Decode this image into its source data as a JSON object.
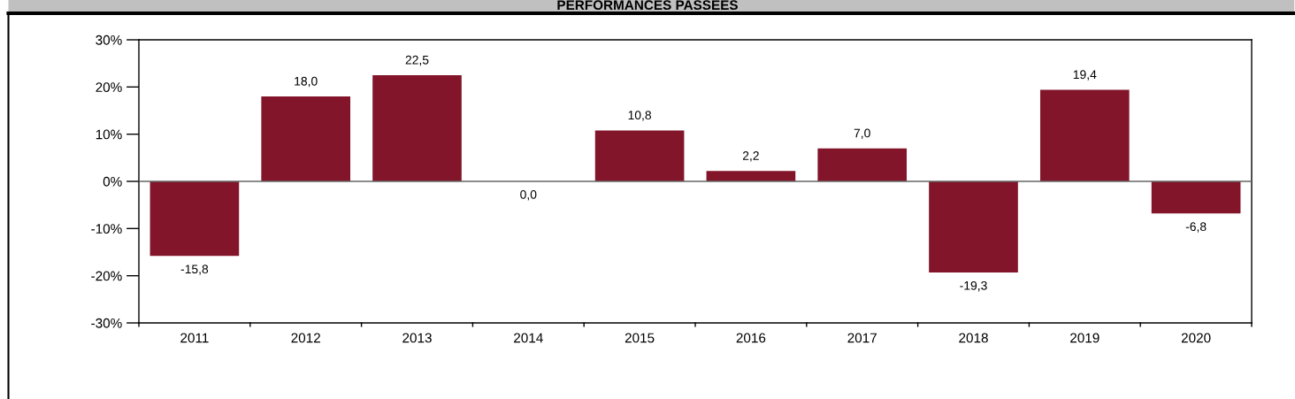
{
  "chart_data": {
    "type": "bar",
    "title": "PERFORMANCES PASSEES",
    "categories": [
      "2011",
      "2012",
      "2013",
      "2014",
      "2015",
      "2016",
      "2017",
      "2018",
      "2019",
      "2020"
    ],
    "values": [
      -15.8,
      18.0,
      22.5,
      0.0,
      10.8,
      2.2,
      7.0,
      -19.3,
      19.4,
      -6.8
    ],
    "value_labels": [
      "-15,8",
      "18,0",
      "22,5",
      "0,0",
      "10,8",
      "2,2",
      "7,0",
      "-19,3",
      "19,4",
      "-6,8"
    ],
    "color": "#82152a",
    "ylim": [
      -30,
      30
    ],
    "yticks": [
      {
        "value": -30,
        "label": "-30%"
      },
      {
        "value": -20,
        "label": "-20%"
      },
      {
        "value": -10,
        "label": "-10%"
      },
      {
        "value": 0,
        "label": "0%"
      },
      {
        "value": 10,
        "label": "10%"
      },
      {
        "value": 20,
        "label": "20%"
      },
      {
        "value": 30,
        "label": "30%"
      }
    ],
    "ref_lines": [
      {
        "axis": "y",
        "value": 0,
        "color": "#666666"
      }
    ],
    "grid": false,
    "legend": false
  }
}
